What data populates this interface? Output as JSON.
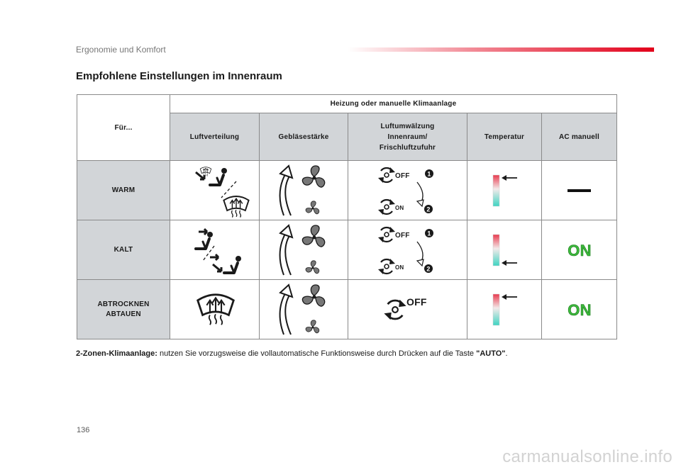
{
  "header": {
    "section": "Ergonomie und Komfort",
    "title": "Empfohlene Einstellungen im Innenraum"
  },
  "table": {
    "for_label": "Für...",
    "group_header": "Heizung oder manuelle Klimaanlage",
    "columns": [
      "Luftverteilung",
      "Gebläsestärke",
      "Luftumwälzung Innenraum/ Frischluftzufuhr",
      "Temperatur",
      "AC manuell"
    ],
    "rows": [
      {
        "label": "WARM",
        "recirc_top": "OFF",
        "recirc_bottom": "ON",
        "step1": "1",
        "step2": "2",
        "ac": "—"
      },
      {
        "label": "KALT",
        "recirc_top": "OFF",
        "recirc_bottom": "ON",
        "step1": "1",
        "step2": "2",
        "ac": "ON"
      },
      {
        "label_line1": "ABTROCKNEN",
        "label_line2": "ABTAUEN",
        "recirc_single": "OFF",
        "ac": "ON"
      }
    ]
  },
  "footnote": {
    "bold": "2-Zonen-Klimaanlage:",
    "text": " nutzen Sie vorzugsweise die vollautomatische Funktionsweise durch Drücken auf die Taste ",
    "key": "\"AUTO\"",
    "end": "."
  },
  "page_number": "136",
  "watermark": "carmanualsonline.info",
  "colors": {
    "accent": "#e2001a",
    "on_green": "#3cb83c",
    "table_gray": "#d2d5d8"
  },
  "icons": {
    "distribution": [
      "windscreen-defrost-icon",
      "footwell-icon",
      "face-vent-icon",
      "windscreen-demist-icon"
    ],
    "fan": "fan-icon",
    "recirc": "air-recirculation-icon",
    "temperature": "temperature-gauge-icon"
  }
}
